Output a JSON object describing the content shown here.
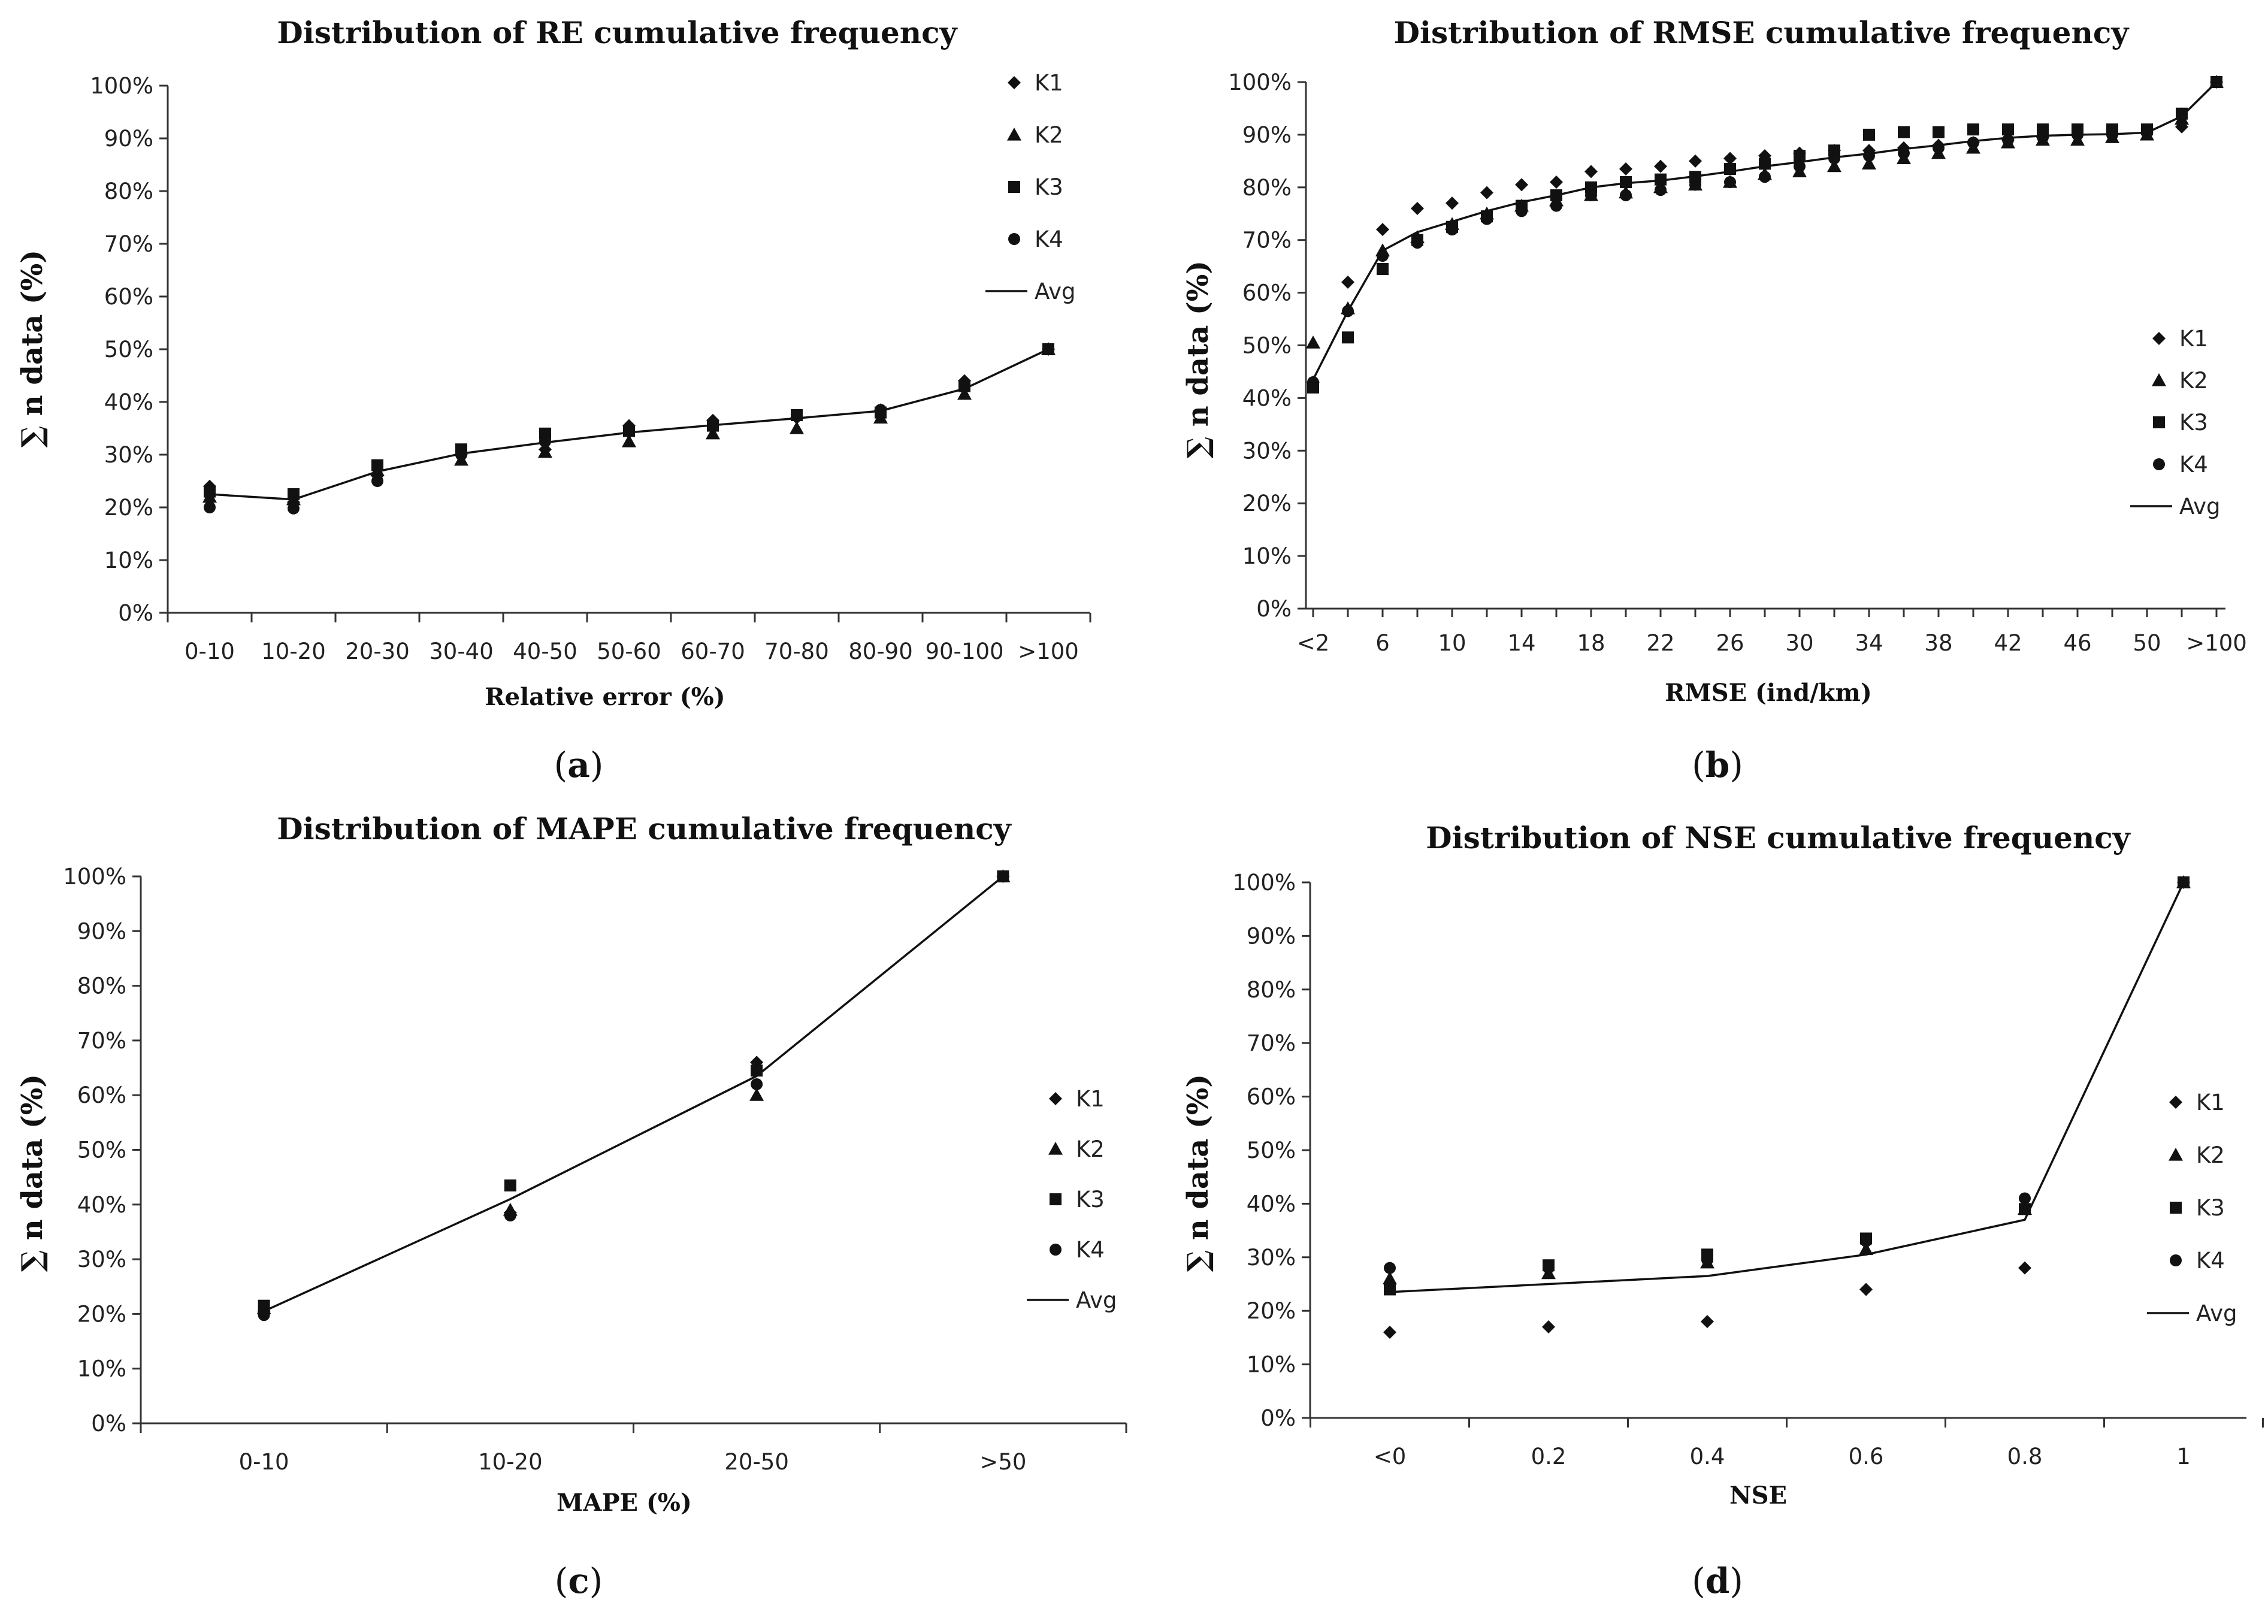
{
  "chart_data": [
    {
      "type": "line",
      "panel": "a",
      "title": "Distribution of RE cumulative frequency",
      "xlabel": "Relative error (%)",
      "ylabel": "∑ n data (%)",
      "ylim": [
        0,
        100
      ],
      "yticks": [
        "0%",
        "10%",
        "20%",
        "30%",
        "40%",
        "50%",
        "60%",
        "70%",
        "80%",
        "90%",
        "100%"
      ],
      "categories": [
        "0-10",
        "10-20",
        "20-30",
        "30-40",
        "40-50",
        "50-60",
        "60-70",
        "70-80",
        "80-90",
        "90-100",
        ">100"
      ],
      "legend_position": "top-right",
      "series": [
        {
          "name": "K1",
          "marker": "diamond",
          "values": [
            24,
            21,
            26,
            30,
            31,
            35.5,
            36.5,
            37,
            38.5,
            44,
            50
          ]
        },
        {
          "name": "K2",
          "marker": "triangle",
          "values": [
            22,
            21.5,
            27,
            29,
            30.5,
            32.5,
            34,
            35,
            37,
            41.5,
            50
          ]
        },
        {
          "name": "K3",
          "marker": "square",
          "values": [
            23,
            22.5,
            28,
            31,
            34,
            34.5,
            35.5,
            37.5,
            38,
            43,
            50
          ]
        },
        {
          "name": "K4",
          "marker": "circle",
          "values": [
            20,
            19.8,
            25,
            30,
            32.5,
            34.5,
            36,
            37.5,
            38.5,
            43,
            50
          ]
        },
        {
          "name": "Avg",
          "marker": "line",
          "values": [
            22.5,
            21.5,
            26.8,
            30.2,
            32.3,
            34.2,
            35.6,
            36.9,
            38.3,
            42.5,
            50
          ]
        }
      ]
    },
    {
      "type": "line",
      "panel": "b",
      "title": "Distribution of RMSE cumulative frequency",
      "xlabel": "RMSE (ind/km)",
      "ylabel": "∑ n data (%)",
      "ylim": [
        0,
        100
      ],
      "yticks": [
        "0%",
        "10%",
        "20%",
        "30%",
        "40%",
        "50%",
        "60%",
        "70%",
        "80%",
        "90%",
        "100%"
      ],
      "categories": [
        "<2",
        "4",
        "6",
        "8",
        "10",
        "12",
        "14",
        "16",
        "18",
        "20",
        "22",
        "24",
        "26",
        "28",
        "30",
        "32",
        "34",
        "36",
        "38",
        "40",
        "42",
        "44",
        "46",
        "48",
        "50",
        "52",
        ">100"
      ],
      "tick_labels": [
        "<2",
        "6",
        "10",
        "14",
        "18",
        "22",
        "26",
        "30",
        "34",
        "38",
        "42",
        "46",
        "50",
        ">100"
      ],
      "legend_position": "right",
      "series": [
        {
          "name": "K1",
          "marker": "diamond",
          "values": [
            43,
            62,
            72,
            76,
            77,
            79,
            80.5,
            81,
            83,
            83.5,
            84,
            85,
            85.5,
            86,
            86.5,
            87,
            87,
            87.5,
            88,
            88.5,
            89,
            89.5,
            90,
            90,
            90.5,
            91.5,
            100
          ]
        },
        {
          "name": "K2",
          "marker": "triangle",
          "values": [
            50.5,
            57,
            68,
            70.5,
            73,
            75,
            76.5,
            77.5,
            78.5,
            79,
            80,
            80.5,
            81,
            82.5,
            83,
            84,
            84.5,
            85.5,
            86.5,
            87.5,
            88.5,
            89,
            89,
            89.5,
            90,
            93,
            100
          ]
        },
        {
          "name": "K3",
          "marker": "square",
          "values": [
            42,
            51.5,
            64.5,
            70,
            72.5,
            74.5,
            76.5,
            78.5,
            80,
            81,
            81.5,
            82,
            83.5,
            84.5,
            86,
            87,
            90,
            90.5,
            90.5,
            91,
            91,
            91,
            91,
            91,
            91,
            94,
            100
          ]
        },
        {
          "name": "K4",
          "marker": "circle",
          "values": [
            43,
            56.5,
            67,
            69.5,
            72,
            74,
            75.5,
            76.5,
            78.5,
            78.5,
            79.5,
            80.5,
            81,
            82,
            84,
            85.5,
            86,
            86.5,
            87.5,
            88.5,
            89,
            89.5,
            90,
            90,
            90.5,
            94,
            100
          ]
        },
        {
          "name": "Avg",
          "marker": "line",
          "values": [
            43.5,
            56.5,
            68,
            71.5,
            73.5,
            75.5,
            77.2,
            78.5,
            80,
            80.8,
            81.3,
            82.1,
            83,
            84,
            84.8,
            85.7,
            86.4,
            87.3,
            88,
            88.8,
            89.4,
            89.8,
            90,
            90.1,
            90.4,
            93.5,
            100
          ]
        }
      ]
    },
    {
      "type": "line",
      "panel": "c",
      "title": "Distribution of MAPE cumulative frequency",
      "xlabel": "MAPE (%)",
      "ylabel": "∑ n data (%)",
      "ylim": [
        0,
        100
      ],
      "yticks": [
        "0%",
        "10%",
        "20%",
        "30%",
        "40%",
        "50%",
        "60%",
        "70%",
        "80%",
        "90%",
        "100%"
      ],
      "categories": [
        "0-10",
        "10-20",
        "20-50",
        ">50"
      ],
      "legend_position": "right",
      "series": [
        {
          "name": "K1",
          "marker": "diamond",
          "values": [
            20.5,
            38.5,
            66,
            100
          ]
        },
        {
          "name": "K2",
          "marker": "triangle",
          "values": [
            21,
            39,
            60,
            100
          ]
        },
        {
          "name": "K3",
          "marker": "square",
          "values": [
            21.5,
            43.5,
            64.5,
            100
          ]
        },
        {
          "name": "K4",
          "marker": "circle",
          "values": [
            19.8,
            38,
            62,
            100
          ]
        },
        {
          "name": "Avg",
          "marker": "line",
          "values": [
            20.5,
            41,
            63.5,
            100
          ]
        }
      ]
    },
    {
      "type": "line",
      "panel": "d",
      "title": "Distribution of NSE cumulative frequency",
      "xlabel": "NSE",
      "ylabel": "∑ n data (%)",
      "ylim": [
        0,
        100
      ],
      "yticks": [
        "0%",
        "10%",
        "20%",
        "30%",
        "40%",
        "50%",
        "60%",
        "70%",
        "80%",
        "90%",
        "100%"
      ],
      "categories": [
        "<0",
        "0.2",
        "0.4",
        "0.6",
        "0.8",
        "1"
      ],
      "legend_position": "right",
      "series": [
        {
          "name": "K1",
          "marker": "diamond",
          "values": [
            16,
            17,
            18,
            24,
            28,
            100
          ]
        },
        {
          "name": "K2",
          "marker": "triangle",
          "values": [
            26,
            27,
            29,
            31.5,
            39,
            100
          ]
        },
        {
          "name": "K3",
          "marker": "square",
          "values": [
            24,
            28.5,
            30.5,
            33.5,
            39,
            100
          ]
        },
        {
          "name": "K4",
          "marker": "circle",
          "values": [
            28,
            28,
            29.5,
            33,
            41,
            100
          ]
        },
        {
          "name": "Avg",
          "marker": "line",
          "values": [
            23.5,
            25,
            26.5,
            30.5,
            37,
            100
          ]
        }
      ]
    }
  ],
  "panel_labels": [
    {
      "open": "(",
      "letter": "a",
      "close": ")"
    },
    {
      "open": "(",
      "letter": "b",
      "close": ")"
    },
    {
      "open": "(",
      "letter": "c",
      "close": ")"
    },
    {
      "open": "(",
      "letter": "d",
      "close": ")"
    }
  ]
}
